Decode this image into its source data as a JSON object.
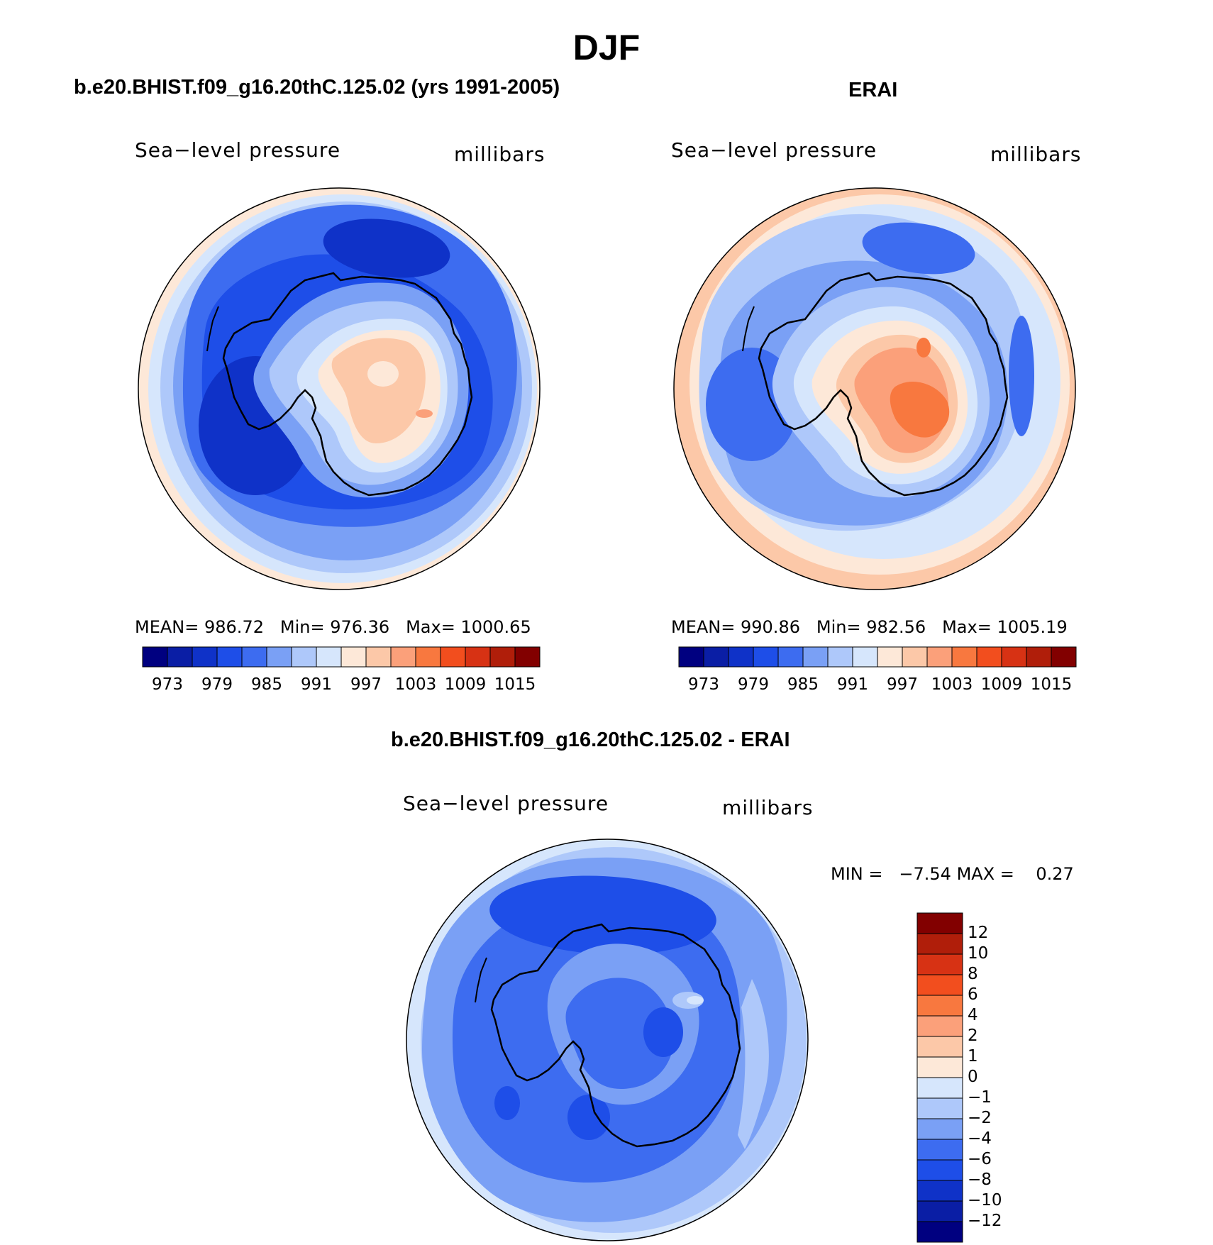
{
  "figure": {
    "title": "DJF"
  },
  "panels": [
    {
      "id": "model",
      "title": "b.e20.BHIST.f09_g16.20thC.125.02 (yrs 1991-2005)",
      "variable_label": "Sea−level pressure",
      "units_label": "millibars",
      "stats": {
        "mean_label": "MEAN=",
        "mean": "986.72",
        "min_label": "Min=",
        "min": "976.36",
        "max_label": "Max=",
        "max": "1000.65"
      }
    },
    {
      "id": "obs",
      "title": "ERAI",
      "variable_label": "Sea−level pressure",
      "units_label": "millibars",
      "stats": {
        "mean_label": "MEAN=",
        "mean": "990.86",
        "min_label": "Min=",
        "min": "982.56",
        "max_label": "Max=",
        "max": "1005.19"
      }
    },
    {
      "id": "diff",
      "title": "b.e20.BHIST.f09_g16.20thC.125.02 - ERAI",
      "variable_label": "Sea−level pressure",
      "units_label": "millibars",
      "stats": {
        "min_label": "MIN =",
        "min": "−7.54",
        "max_label": "MAX =",
        "max": "0.27"
      }
    }
  ],
  "colorbars": {
    "field": {
      "colors": [
        "#000080",
        "#0a1ea5",
        "#0f32c8",
        "#1e4ee8",
        "#3d6cf0",
        "#7aa0f5",
        "#aec8fa",
        "#d6e6fc",
        "#fde8d8",
        "#fcc8a8",
        "#fba07a",
        "#f8783f",
        "#f24e1e",
        "#d73214",
        "#b01e0a",
        "#820000"
      ],
      "ticks": [
        "973",
        "979",
        "985",
        "991",
        "997",
        "1003",
        "1009",
        "1015"
      ]
    },
    "diff": {
      "colors_top_to_bottom": [
        "#820000",
        "#b01e0a",
        "#d73214",
        "#f24e1e",
        "#f8783f",
        "#fba07a",
        "#fcc8a8",
        "#fde8d8",
        "#d6e6fc",
        "#aec8fa",
        "#7aa0f5",
        "#3d6cf0",
        "#1e4ee8",
        "#0f32c8",
        "#0a1ea5",
        "#000080"
      ],
      "ticks": [
        "12",
        "10",
        "8",
        "6",
        "4",
        "2",
        "1",
        "0",
        "−1",
        "−2",
        "−4",
        "−6",
        "−8",
        "−10",
        "−12"
      ]
    }
  }
}
